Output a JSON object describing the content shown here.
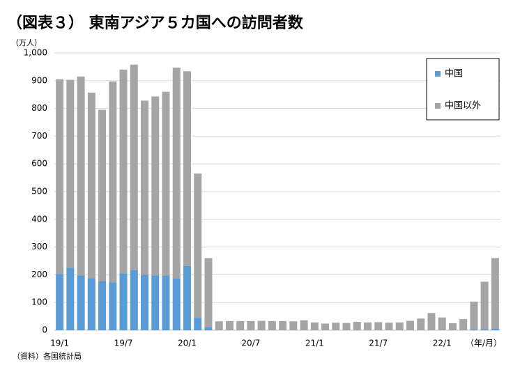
{
  "chart_data": {
    "type": "stacked_bar",
    "title": "（図表３） 東南アジア５カ国への訪問者数",
    "y_axis_label": "（万人）",
    "x_axis_label": "（年/月）",
    "source": "（資料）各国統計局",
    "categories": [
      "19/1",
      null,
      null,
      null,
      null,
      null,
      "19/7",
      null,
      null,
      null,
      null,
      null,
      "20/1",
      null,
      null,
      null,
      null,
      null,
      "20/7",
      null,
      null,
      null,
      null,
      null,
      "21/1",
      null,
      null,
      null,
      null,
      null,
      "21/7",
      null,
      null,
      null,
      null,
      null,
      "22/1",
      null,
      null,
      null,
      null,
      null
    ],
    "series": [
      {
        "name": "中国",
        "color": "#5b9bd5",
        "values": [
          203,
          225,
          198,
          188,
          177,
          172,
          205,
          218,
          200,
          198,
          198,
          187,
          232,
          45,
          12,
          0,
          0,
          0,
          0,
          0,
          0,
          0,
          0,
          0,
          0,
          0,
          0,
          0,
          0,
          0,
          0,
          0,
          0,
          0,
          0,
          0,
          0,
          0,
          0,
          3,
          4,
          5
        ]
      },
      {
        "name": "中国以外",
        "color": "#a5a5a5",
        "values": [
          702,
          678,
          717,
          669,
          618,
          725,
          735,
          740,
          628,
          645,
          662,
          760,
          702,
          520,
          248,
          32,
          33,
          33,
          33,
          34,
          33,
          33,
          32,
          36,
          28,
          24,
          27,
          26,
          30,
          28,
          29,
          27,
          28,
          34,
          42,
          62,
          46,
          25,
          40,
          100,
          171,
          255
        ]
      }
    ],
    "ylim": [
      0,
      1000
    ],
    "yticks": [
      0,
      100,
      200,
      300,
      400,
      500,
      600,
      700,
      800,
      900,
      {
        "value": 1000,
        "label": "1,000"
      }
    ],
    "grid": true,
    "legend": "upper right"
  }
}
